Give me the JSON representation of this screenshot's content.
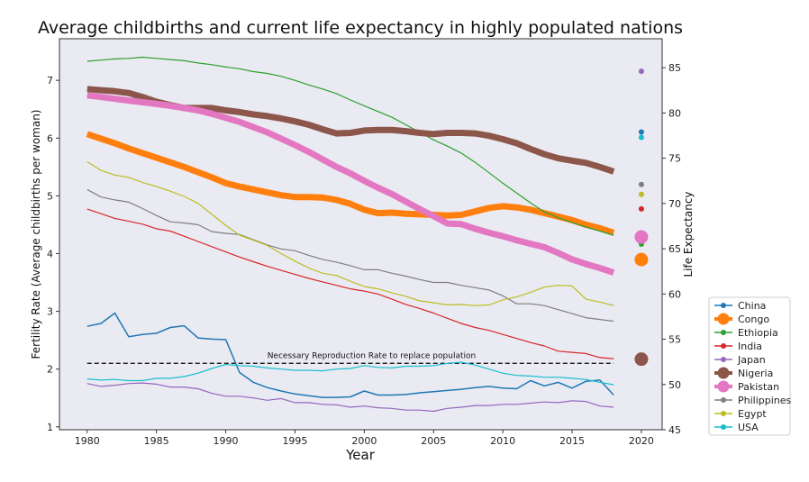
{
  "chart_data": {
    "type": "line",
    "title": "Average childbirths and current life expectancy in highly populated nations",
    "xlabel": "Year",
    "ylabel": "Fertility Rate (Average childbirths per woman)",
    "y2label": "Life Expectancy",
    "xlim": [
      1978,
      2021.5
    ],
    "ylim": [
      0.95,
      7.72
    ],
    "y2lim": [
      45,
      88.2
    ],
    "xticks": [
      1980,
      1985,
      1990,
      1995,
      2000,
      2005,
      2010,
      2015,
      2020
    ],
    "yticks": [
      1,
      2,
      3,
      4,
      5,
      6,
      7
    ],
    "y2ticks": [
      45,
      50,
      55,
      60,
      65,
      70,
      75,
      80,
      85
    ],
    "years": [
      1980,
      1981,
      1982,
      1983,
      1984,
      1985,
      1986,
      1987,
      1988,
      1989,
      1990,
      1991,
      1992,
      1993,
      1994,
      1995,
      1996,
      1997,
      1998,
      1999,
      2000,
      2001,
      2002,
      2003,
      2004,
      2005,
      2006,
      2007,
      2008,
      2009,
      2010,
      2011,
      2012,
      2013,
      2014,
      2015,
      2016,
      2017,
      2018
    ],
    "reference_line": {
      "value": 2.1,
      "label": "Necessary Reproduction Rate to replace population"
    },
    "legend_position": "outside-lower-right",
    "background": "#eaeaf2",
    "series": [
      {
        "name": "China",
        "color": "#1f77b4",
        "width": 1.5,
        "life_expectancy": 77.9,
        "values": [
          2.74,
          2.79,
          2.97,
          2.56,
          2.6,
          2.62,
          2.72,
          2.75,
          2.54,
          2.52,
          2.51,
          1.94,
          1.77,
          1.68,
          1.62,
          1.57,
          1.54,
          1.51,
          1.51,
          1.52,
          1.62,
          1.55,
          1.55,
          1.56,
          1.59,
          1.61,
          1.63,
          1.65,
          1.68,
          1.7,
          1.67,
          1.66,
          1.8,
          1.71,
          1.77,
          1.67,
          1.79,
          1.81,
          1.55
        ]
      },
      {
        "name": "Congo",
        "color": "#ff7f0e",
        "width": 7,
        "life_expectancy": 63.8,
        "values": [
          6.07,
          5.99,
          5.91,
          5.82,
          5.74,
          5.66,
          5.58,
          5.5,
          5.41,
          5.32,
          5.22,
          5.16,
          5.11,
          5.06,
          5.01,
          4.98,
          4.98,
          4.97,
          4.93,
          4.86,
          4.76,
          4.7,
          4.71,
          4.69,
          4.68,
          4.67,
          4.66,
          4.67,
          4.73,
          4.79,
          4.82,
          4.8,
          4.76,
          4.7,
          4.64,
          4.58,
          4.5,
          4.44,
          4.36
        ]
      },
      {
        "name": "Ethiopia",
        "color": "#2ca02c",
        "width": 1.2,
        "life_expectancy": 65.5,
        "values": [
          7.33,
          7.35,
          7.37,
          7.38,
          7.4,
          7.38,
          7.36,
          7.34,
          7.3,
          7.27,
          7.23,
          7.2,
          7.15,
          7.12,
          7.07,
          7.0,
          6.92,
          6.85,
          6.77,
          6.66,
          6.56,
          6.46,
          6.36,
          6.23,
          6.1,
          5.97,
          5.86,
          5.74,
          5.58,
          5.4,
          5.22,
          5.05,
          4.88,
          4.72,
          4.62,
          4.54,
          4.46,
          4.39,
          4.32
        ]
      },
      {
        "name": "India",
        "color": "#d62728",
        "width": 1.2,
        "life_expectancy": 69.4,
        "values": [
          4.77,
          4.69,
          4.61,
          4.56,
          4.51,
          4.43,
          4.39,
          4.3,
          4.21,
          4.12,
          4.03,
          3.94,
          3.86,
          3.78,
          3.71,
          3.64,
          3.57,
          3.51,
          3.45,
          3.39,
          3.35,
          3.3,
          3.21,
          3.12,
          3.05,
          2.97,
          2.88,
          2.79,
          2.72,
          2.67,
          2.6,
          2.53,
          2.46,
          2.4,
          2.31,
          2.29,
          2.27,
          2.2,
          2.18
        ]
      },
      {
        "name": "Japan",
        "color": "#9467bd",
        "width": 1.2,
        "life_expectancy": 84.6,
        "values": [
          1.75,
          1.7,
          1.72,
          1.75,
          1.76,
          1.74,
          1.69,
          1.69,
          1.66,
          1.58,
          1.53,
          1.53,
          1.5,
          1.46,
          1.49,
          1.42,
          1.42,
          1.39,
          1.38,
          1.34,
          1.36,
          1.33,
          1.32,
          1.29,
          1.29,
          1.27,
          1.32,
          1.34,
          1.37,
          1.37,
          1.39,
          1.39,
          1.41,
          1.43,
          1.42,
          1.45,
          1.44,
          1.36,
          1.34
        ]
      },
      {
        "name": "Nigeria",
        "color": "#8c564b",
        "width": 7,
        "life_expectancy": 52.8,
        "values": [
          6.85,
          6.83,
          6.81,
          6.78,
          6.71,
          6.63,
          6.57,
          6.52,
          6.52,
          6.52,
          6.48,
          6.45,
          6.41,
          6.38,
          6.34,
          6.29,
          6.23,
          6.15,
          6.08,
          6.09,
          6.13,
          6.14,
          6.14,
          6.12,
          6.09,
          6.07,
          6.09,
          6.09,
          6.08,
          6.04,
          5.98,
          5.91,
          5.81,
          5.72,
          5.65,
          5.61,
          5.57,
          5.5,
          5.42
        ]
      },
      {
        "name": "Pakistan",
        "color": "#e377c2",
        "width": 7,
        "life_expectancy": 66.3,
        "values": [
          6.74,
          6.71,
          6.68,
          6.65,
          6.62,
          6.59,
          6.56,
          6.52,
          6.48,
          6.42,
          6.35,
          6.28,
          6.19,
          6.1,
          5.99,
          5.88,
          5.76,
          5.63,
          5.5,
          5.39,
          5.26,
          5.14,
          5.03,
          4.9,
          4.77,
          4.65,
          4.52,
          4.51,
          4.43,
          4.36,
          4.3,
          4.23,
          4.17,
          4.11,
          4.01,
          3.9,
          3.82,
          3.75,
          3.67
        ]
      },
      {
        "name": "Philippines",
        "color": "#7f7f7f",
        "width": 1.2,
        "life_expectancy": 72.1,
        "values": [
          5.11,
          4.98,
          4.93,
          4.89,
          4.78,
          4.66,
          4.55,
          4.53,
          4.5,
          4.38,
          4.35,
          4.33,
          4.24,
          4.15,
          4.08,
          4.05,
          3.97,
          3.9,
          3.85,
          3.79,
          3.72,
          3.72,
          3.66,
          3.61,
          3.55,
          3.5,
          3.5,
          3.45,
          3.41,
          3.37,
          3.27,
          3.13,
          3.13,
          3.1,
          3.03,
          2.96,
          2.89,
          2.86,
          2.83
        ]
      },
      {
        "name": "Egypt",
        "color": "#bcbd22",
        "width": 1.2,
        "life_expectancy": 71.0,
        "values": [
          5.59,
          5.44,
          5.36,
          5.32,
          5.23,
          5.16,
          5.08,
          4.99,
          4.87,
          4.68,
          4.49,
          4.32,
          4.23,
          4.14,
          4.0,
          3.87,
          3.75,
          3.66,
          3.62,
          3.52,
          3.43,
          3.39,
          3.32,
          3.26,
          3.18,
          3.15,
          3.11,
          3.12,
          3.1,
          3.11,
          3.2,
          3.25,
          3.33,
          3.42,
          3.45,
          3.44,
          3.21,
          3.16,
          3.1
        ]
      },
      {
        "name": "USA",
        "color": "#17becf",
        "width": 1.2,
        "life_expectancy": 77.3,
        "values": [
          1.83,
          1.81,
          1.82,
          1.8,
          1.8,
          1.84,
          1.84,
          1.87,
          1.93,
          2.01,
          2.08,
          2.06,
          2.05,
          2.02,
          2.0,
          1.98,
          1.98,
          1.97,
          2.0,
          2.01,
          2.06,
          2.03,
          2.02,
          2.05,
          2.05,
          2.06,
          2.1,
          2.12,
          2.07,
          2.0,
          1.93,
          1.89,
          1.88,
          1.86,
          1.86,
          1.84,
          1.82,
          1.77,
          1.73
        ]
      }
    ]
  }
}
